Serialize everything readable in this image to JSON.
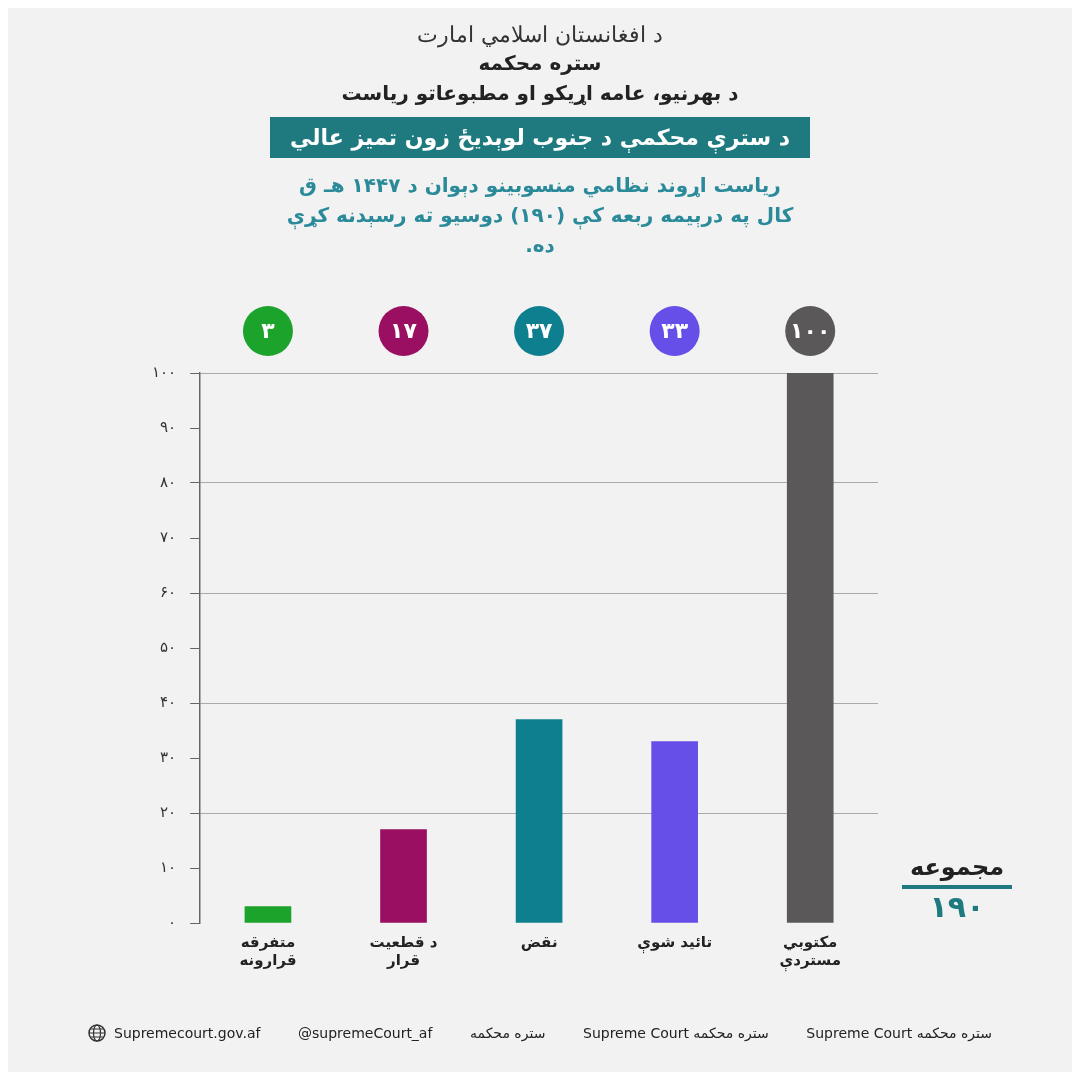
{
  "chart_data": {
    "type": "bar",
    "title": "د سترې محکمې د جنوب لوېدیځ زون تمیز عالي",
    "subtitle": "ریاست اړوند نظامي منسوبینو دېوان د ۱۴۴۷ هـ ق کال په درېیمه ربعه کې (۱۹۰) دوسیو ته رسېدنه کړې ده.",
    "categories": [
      "متفرقه قرارونه",
      "د قطعیت قرار",
      "نقض",
      "تائید شوې",
      "مکتوبي مستردې"
    ],
    "values": [
      3,
      17,
      37,
      33,
      100
    ],
    "colors": [
      "#1ba32b",
      "#9a0f62",
      "#0e7f8e",
      "#664fe8",
      "#5a5858"
    ],
    "value_labels": [
      "۳",
      "۱۷",
      "۳۷",
      "۳۳",
      "۱۰۰"
    ],
    "ylim": [
      0,
      100
    ],
    "yticks": [
      {
        "value": 0,
        "label": "۰"
      },
      {
        "value": 10,
        "label": "۱۰"
      },
      {
        "value": 20,
        "label": "۲۰"
      },
      {
        "value": 30,
        "label": "۳۰"
      },
      {
        "value": 40,
        "label": "۴۰"
      },
      {
        "value": 50,
        "label": "۵۰"
      },
      {
        "value": 60,
        "label": "۶۰"
      },
      {
        "value": 70,
        "label": "۷۰"
      },
      {
        "value": 80,
        "label": "۸۰"
      },
      {
        "value": 90,
        "label": "۹۰"
      },
      {
        "value": 100,
        "label": "۱۰۰"
      }
    ],
    "grid": "y",
    "annotations": [
      "د افغانستان اسلامي امارت",
      "ستره محکمه",
      "د بهرنیو، عامه اړیکو او مطبوعاتو ریاست",
      "مجموعه",
      "۱۹۰",
      "Supremecourt.gov.af",
      "@supremeCourt_af",
      "ستره محکمه",
      "ستره محکمه Supreme Court",
      "ستره محکمه Supreme Court"
    ]
  }
}
